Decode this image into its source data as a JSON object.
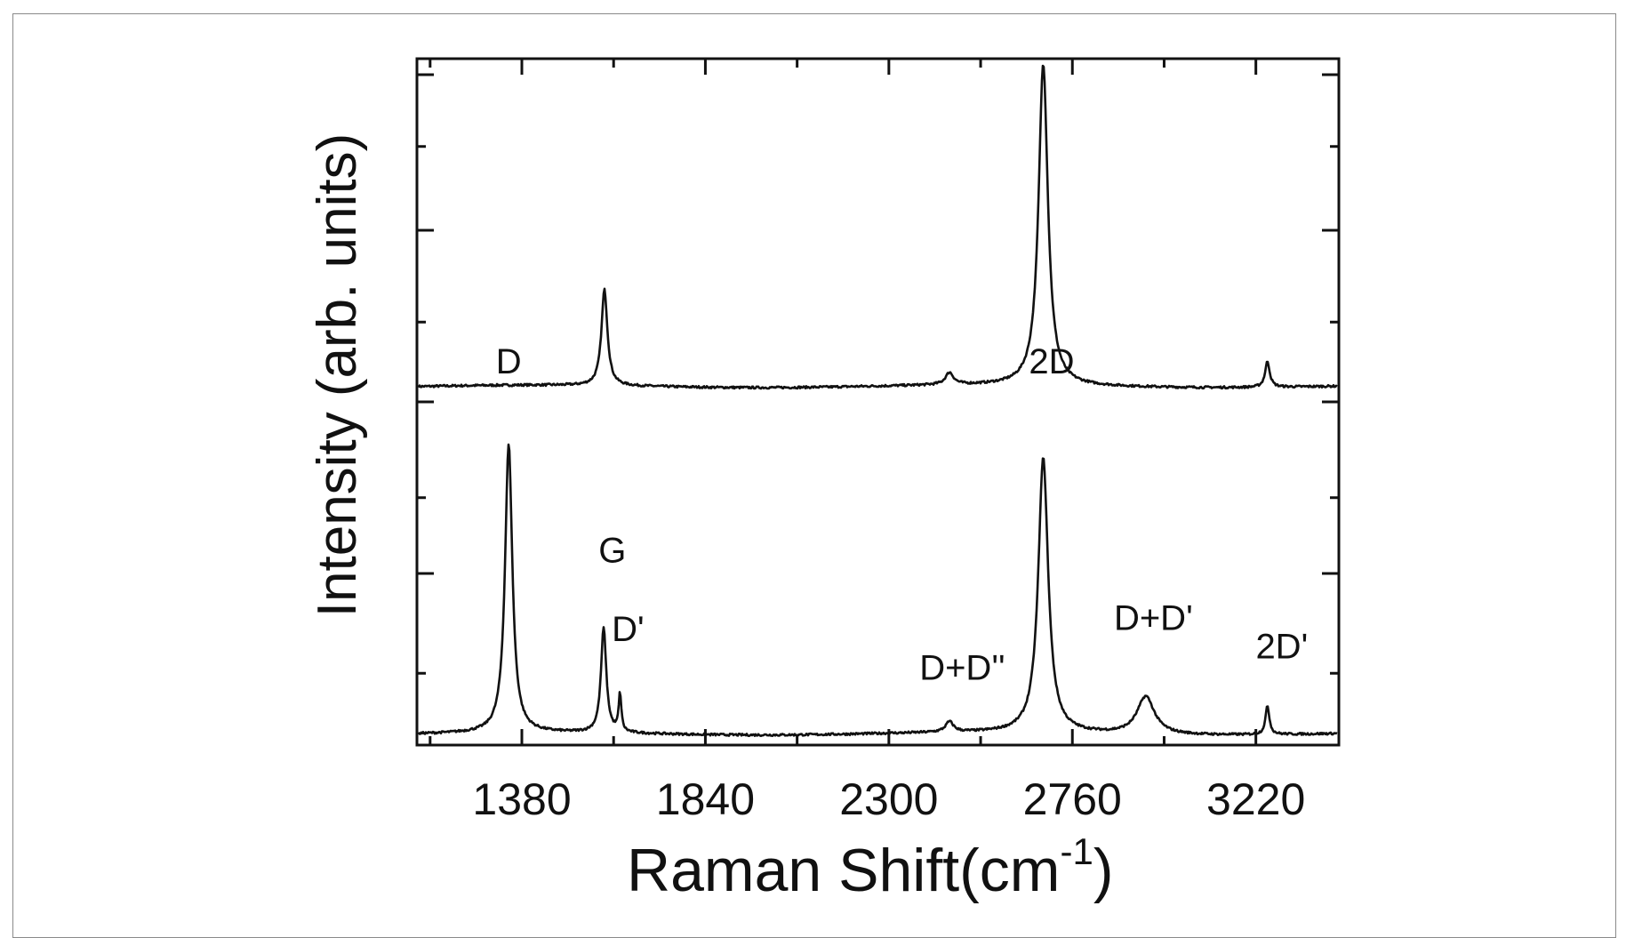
{
  "chart_data": {
    "type": "line",
    "title": "",
    "xlabel": "Raman Shift(cm-1)",
    "xlabel_main": "Raman Shift(cm",
    "xlabel_sup": "-1",
    "xlabel_close": ")",
    "ylabel": "Intensity (arb. units)",
    "xlim": [
      1117,
      3428
    ],
    "x_ticks_major": [
      1380,
      1840,
      2300,
      2760,
      3220
    ],
    "x_tick_labels": [
      "1380",
      "1840",
      "2300",
      "2760",
      "3220"
    ],
    "x_ticks_minor": [
      1150,
      1610,
      2070,
      2530,
      2990
    ],
    "y_tick_labels": [],
    "ylim": [
      0,
      8
    ],
    "y_ticks_major": [
      0,
      2,
      4,
      6,
      8
    ],
    "y_ticks_minor": [
      1,
      3,
      5,
      7
    ],
    "grid": false,
    "legend": null,
    "series": [
      {
        "name": "upper spectrum",
        "offset": 4.16,
        "baseline": 0.02,
        "peaks": [
          {
            "label": "G",
            "x": 1587,
            "height": 1.12,
            "width": 9
          },
          {
            "label": "D+D''",
            "x": 2452,
            "height": 0.14,
            "width": 12
          },
          {
            "label": "2D",
            "x": 2687,
            "height": 3.75,
            "width": 14
          },
          {
            "label": "2D'",
            "x": 3249,
            "height": 0.3,
            "width": 7
          }
        ]
      },
      {
        "name": "lower spectrum (annotated)",
        "offset": 0.11,
        "baseline": 0.02,
        "peaks": [
          {
            "label": "D",
            "x": 1347,
            "height": 3.36,
            "width": 11
          },
          {
            "label": "G",
            "x": 1585,
            "height": 1.22,
            "width": 8
          },
          {
            "label": "D'",
            "x": 1626,
            "height": 0.44,
            "width": 4
          },
          {
            "label": "D+D''",
            "x": 2452,
            "height": 0.12,
            "width": 12
          },
          {
            "label": "2D",
            "x": 2687,
            "height": 3.2,
            "width": 15
          },
          {
            "label": "D+D'",
            "x": 2944,
            "height": 0.44,
            "width": 26
          },
          {
            "label": "2D'",
            "x": 3249,
            "height": 0.33,
            "width": 6
          }
        ]
      }
    ],
    "annotations": [
      {
        "text": "D",
        "x": 1347,
        "y": 4.33
      },
      {
        "text": "G",
        "x": 1607,
        "y": 2.13
      },
      {
        "text": "D'",
        "x": 1646,
        "y": 1.21
      },
      {
        "text": "2D",
        "x": 2708,
        "y": 4.33
      },
      {
        "text": "D+D''",
        "x": 2484,
        "y": 0.76
      },
      {
        "text": "D+D'",
        "x": 2963,
        "y": 1.34
      },
      {
        "text": "2D'",
        "x": 3285,
        "y": 1.01
      }
    ]
  }
}
